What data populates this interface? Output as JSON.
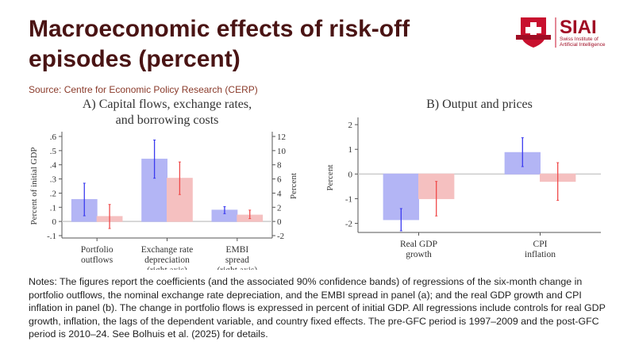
{
  "header": {
    "title": "Macroeconomic effects of risk-off episodes (percent)",
    "source": "Source: Centre for Economic Policy Research (CERP)"
  },
  "logo": {
    "text": "SIAI",
    "subtitle_line1": "Swiss Institute of",
    "subtitle_line2": "Artificial Intelligence"
  },
  "notes": "Notes: The figures report the coefficients (and the associated 90% confidence bands) of regressions of the six-month change in portfolio outflows, the nominal exchange rate depreciation, and the EMBI spread in panel (a); and the real GDP growth and CPI inflation in panel (b). The change in portfolio flows is expressed in percent of initial GDP. All regressions include controls for real GDP growth, inflation, the lags of the dependent variable, and country fixed effects. The pre-GFC period is 1997–2009 and the post-GFC period is 2010–24. See Bolhuis et al. (2025) for details.",
  "colors": {
    "title": "#4a1414",
    "blue": "#b3b5f5",
    "blue_err": "#3b3bef",
    "red": "#f5c0c0",
    "red_err": "#ef4a4a",
    "brand": "#c8102e"
  },
  "chart_data": [
    {
      "type": "bar",
      "title_line1": "A) Capital flows, exchange rates,",
      "title_line2": "and borrowing costs",
      "ylabel": "Percent of initial GDP",
      "ylabel_right": "Percent",
      "ylim": [
        -0.1,
        0.6
      ],
      "yticks": [
        "-.1",
        "0",
        ".1",
        ".2",
        ".3",
        ".4",
        ".5",
        ".6"
      ],
      "ylim_right": [
        -2,
        12
      ],
      "yticks_right": [
        "-2",
        "0",
        "2",
        "4",
        "6",
        "8",
        "10",
        "12"
      ],
      "categories": [
        [
          "Portfolio",
          "outflows"
        ],
        [
          "Exchange rate",
          "depreciation",
          "(right axis)"
        ],
        [
          "EMBI",
          "spread",
          "(right axis)"
        ]
      ],
      "axis": [
        "left",
        "right",
        "right"
      ],
      "series": [
        {
          "values": [
            0.155,
            8.8,
            1.6
          ],
          "ci_low": [
            0.04,
            6.1,
            1.1
          ],
          "ci_high": [
            0.27,
            11.5,
            2.1
          ]
        },
        {
          "values": [
            0.035,
            6.1,
            0.9
          ],
          "ci_low": [
            -0.05,
            3.8,
            0.4
          ],
          "ci_high": [
            0.12,
            8.4,
            1.6
          ]
        }
      ]
    },
    {
      "type": "bar",
      "title_line1": "B) Output and prices",
      "ylabel": "Percent",
      "ylim": [
        -2.4,
        2.1
      ],
      "yticks": [
        "-2",
        "-1",
        "0",
        "1",
        "2"
      ],
      "categories": [
        [
          "Real GDP",
          "growth"
        ],
        [
          "CPI",
          "inflation"
        ]
      ],
      "series": [
        {
          "values": [
            -1.85,
            0.87
          ],
          "ci_low": [
            -2.3,
            0.3
          ],
          "ci_high": [
            -1.4,
            1.47
          ]
        },
        {
          "values": [
            -1.0,
            -0.3
          ],
          "ci_low": [
            -1.7,
            -1.07
          ],
          "ci_high": [
            -0.3,
            0.46
          ]
        }
      ]
    }
  ]
}
